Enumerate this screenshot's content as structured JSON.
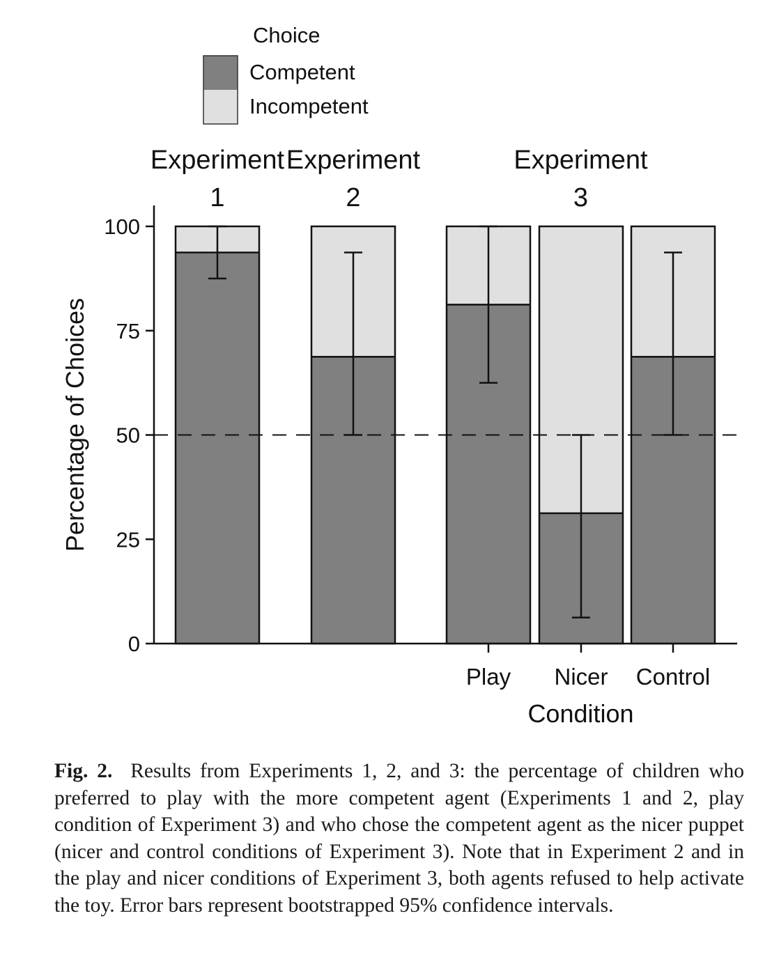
{
  "chart_data": {
    "type": "bar",
    "stacked": true,
    "legend": {
      "title": "Choice",
      "placement": "top-left",
      "entries": [
        {
          "label": "Competent",
          "color": "#808080"
        },
        {
          "label": "Incompetent",
          "color": "#e0e0e0"
        }
      ]
    },
    "groups": [
      {
        "line1": "Experiment",
        "line2": "1",
        "bars": [
          0
        ]
      },
      {
        "line1": "Experiment",
        "line2": "2",
        "bars": [
          1
        ]
      },
      {
        "line1": "Experiment",
        "line2": "3",
        "bars": [
          2,
          3,
          4
        ]
      }
    ],
    "bars": [
      {
        "group": "Experiment 1",
        "condition": "",
        "competent": 93.75,
        "incompetent": 6.25,
        "ci": [
          87.5,
          100
        ]
      },
      {
        "group": "Experiment 2",
        "condition": "",
        "competent": 68.75,
        "incompetent": 31.25,
        "ci": [
          50,
          93.75
        ]
      },
      {
        "group": "Experiment 3",
        "condition": "Play",
        "competent": 81.25,
        "incompetent": 18.75,
        "ci": [
          62.5,
          100
        ]
      },
      {
        "group": "Experiment 3",
        "condition": "Nicer",
        "competent": 31.25,
        "incompetent": 68.75,
        "ci": [
          6.25,
          50
        ]
      },
      {
        "group": "Experiment 3",
        "condition": "Control",
        "competent": 68.75,
        "incompetent": 31.25,
        "ci": [
          50,
          93.75
        ]
      }
    ],
    "ylabel": "Percentage of Choices",
    "xlabel": "Condition",
    "yticks": [
      0,
      25,
      50,
      75,
      100
    ],
    "ylim": [
      0,
      100
    ],
    "reference_line": 50,
    "grid": false
  },
  "caption": {
    "label": "Fig. 2.",
    "text": "Results from Experiments 1, 2, and 3: the percentage of children who preferred to play with the more competent agent (Experiments 1 and 2, play condition of Experiment 3) and who chose the competent agent as the nicer puppet (nicer and control conditions of Experiment 3). Note that in Experiment 2 and in the play and nicer conditions of Experiment 3, both agents refused to help activate the toy. Error bars represent bootstrapped 95% confidence intervals."
  }
}
